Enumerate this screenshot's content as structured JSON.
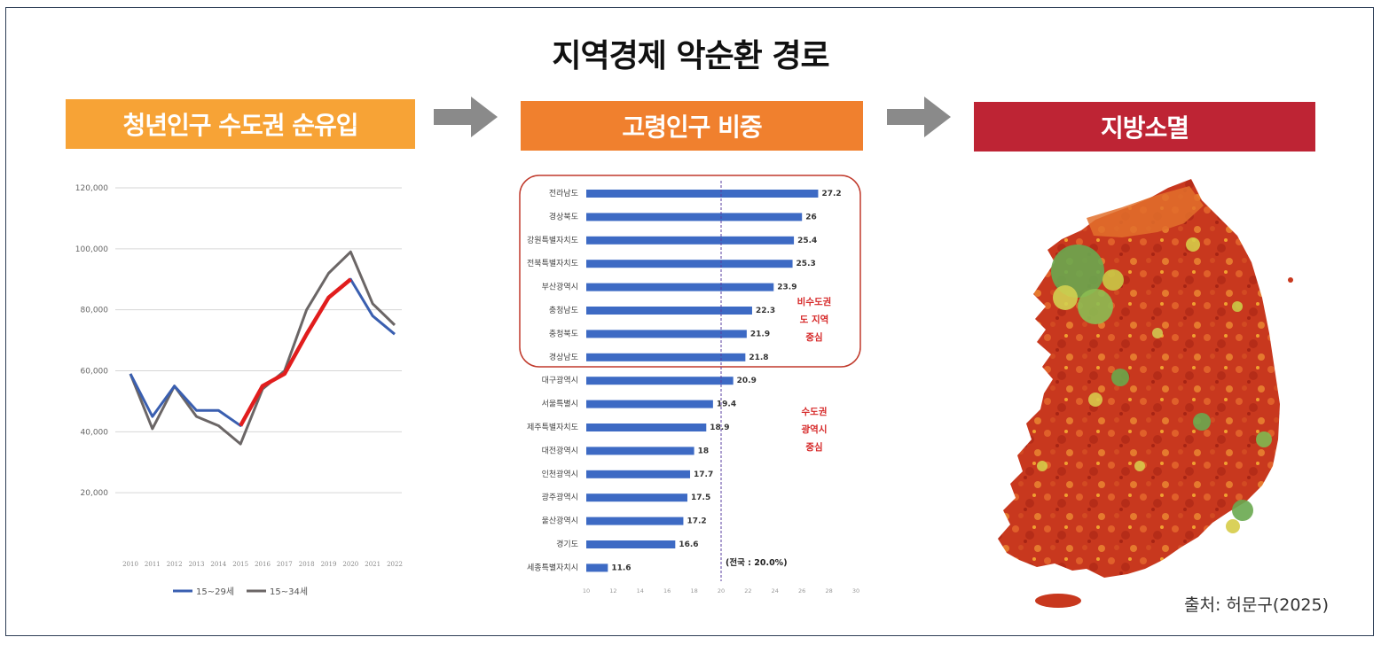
{
  "title": "지역경제 악순환 경로",
  "stages": [
    {
      "label": "청년인구 수도권 순유입",
      "color": "#f7a336"
    },
    {
      "label": "고령인구 비중",
      "color": "#f0802e"
    },
    {
      "label": "지방소멸",
      "color": "#be2434"
    }
  ],
  "arrow_color": "#8a8a8a",
  "source": "출처: 허문구(2025)",
  "chart_data": [
    {
      "type": "line",
      "x": [
        "2010",
        "2011",
        "2012",
        "2013",
        "2014",
        "2015",
        "2016",
        "2017",
        "2018",
        "2019",
        "2020",
        "2021",
        "2022"
      ],
      "ylim": [
        0,
        120000
      ],
      "yticks": [
        20000,
        40000,
        60000,
        80000,
        100000,
        120000
      ],
      "ytick_labels": [
        "20,000",
        "40,000",
        "60,000",
        "80,000",
        "100,000",
        "120,000"
      ],
      "grid": true,
      "legend": "bottom",
      "series": [
        {
          "name": "15~29세",
          "color": "#3a5fb0",
          "values": [
            59000,
            45000,
            55000,
            47000,
            47000,
            42000,
            55000,
            59000,
            72000,
            84000,
            90000,
            78000,
            72000
          ]
        },
        {
          "name": "15~34세",
          "color": "#6b6666",
          "values": [
            59000,
            41000,
            55000,
            45000,
            42000,
            36000,
            54000,
            60000,
            80000,
            92000,
            99000,
            82000,
            75000
          ]
        }
      ],
      "highlight": {
        "color": "#e11d1d",
        "from_index": 5,
        "to_index": 10
      }
    },
    {
      "type": "bar",
      "orientation": "horizontal",
      "categories": [
        "전라남도",
        "경상북도",
        "강원특별자치도",
        "전북특별자치도",
        "부산광역시",
        "충청남도",
        "충청북도",
        "경상남도",
        "대구광역시",
        "서울특별시",
        "제주특별자치도",
        "대전광역시",
        "인천광역시",
        "광주광역시",
        "울산광역시",
        "경기도",
        "세종특별자치시"
      ],
      "values": [
        27.2,
        26,
        25.4,
        25.3,
        23.9,
        22.3,
        21.9,
        21.8,
        20.9,
        19.4,
        18.9,
        18,
        17.7,
        17.5,
        17.2,
        16.6,
        11.6
      ],
      "value_labels": [
        "27.2",
        "26",
        "25.4",
        "25.3",
        "23.9",
        "22.3",
        "21.9",
        "21.8",
        "20.9",
        "19.4",
        "18.9",
        "18",
        "17.7",
        "17.5",
        "17.2",
        "16.6",
        "11.6"
      ],
      "xlim": [
        10,
        30
      ],
      "xticks": [
        "10",
        "12",
        "14",
        "16",
        "18",
        "20",
        "22",
        "24",
        "26",
        "28",
        "30"
      ],
      "bar_color": "#3d6ac4",
      "reference": {
        "value": 20.0,
        "label": "(전국 : 20.0%)"
      },
      "group_labels": [
        {
          "lines": [
            "비수도권",
            "도 지역",
            "중심"
          ],
          "color": "#d62828"
        },
        {
          "lines": [
            "수도권",
            "광역시",
            "중심"
          ],
          "color": "#d62828"
        }
      ]
    }
  ]
}
